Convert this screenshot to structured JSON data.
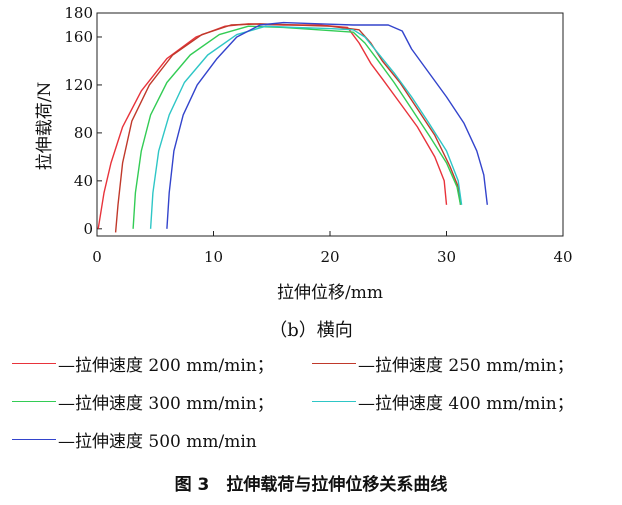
{
  "chart_data": {
    "type": "line",
    "subtitle": "（b）横向",
    "xlabel": "拉伸位移/mm",
    "ylabel": "拉伸载荷/N",
    "xlim": [
      0,
      40
    ],
    "ylim": [
      0,
      180
    ],
    "xticks": [
      0,
      10,
      20,
      30,
      40
    ],
    "yticks": [
      0,
      40,
      80,
      120,
      160,
      180
    ],
    "grid": false,
    "legend_position": "bottom",
    "series": [
      {
        "name": "—拉伸速度 200 mm/min；",
        "color": "#e8333b",
        "x": [
          0.1,
          0.6,
          1.2,
          2.2,
          3.8,
          6.0,
          8.5,
          11.0,
          13.0,
          16.0,
          19.0,
          21.5,
          22.5,
          23.5,
          24.5,
          26.0,
          27.5,
          29.0,
          29.8,
          30.0
        ],
        "y": [
          0,
          30,
          55,
          85,
          115,
          142,
          160,
          169,
          171,
          170,
          170,
          168,
          155,
          138,
          125,
          105,
          85,
          60,
          40,
          20
        ]
      },
      {
        "name": "—拉伸速度 250 mm/min；",
        "color": "#c0392b",
        "x": [
          1.6,
          1.8,
          2.2,
          3.0,
          4.5,
          6.5,
          9.0,
          11.5,
          14.0,
          17.0,
          20.0,
          22.5,
          23.5,
          24.5,
          26.0,
          27.5,
          29.0,
          30.3,
          31.0,
          31.2
        ],
        "y": [
          -3,
          20,
          55,
          90,
          120,
          145,
          162,
          170,
          171,
          170,
          169,
          166,
          155,
          140,
          122,
          100,
          78,
          52,
          35,
          20
        ]
      },
      {
        "name": "—拉伸速度 300 mm/min；",
        "color": "#33cc55",
        "x": [
          3.1,
          3.3,
          3.8,
          4.6,
          6.0,
          8.0,
          10.5,
          13.0,
          16.0,
          19.0,
          22.0,
          23.0,
          24.0,
          25.5,
          27.0,
          28.5,
          30.0,
          30.9,
          31.2
        ],
        "y": [
          0,
          30,
          65,
          95,
          122,
          145,
          162,
          169,
          168,
          166,
          164,
          155,
          142,
          122,
          100,
          78,
          55,
          35,
          20
        ]
      },
      {
        "name": "—拉伸速度 400 mm/min；",
        "color": "#2ec6c6",
        "x": [
          4.6,
          4.8,
          5.3,
          6.2,
          7.5,
          9.5,
          12.0,
          14.5,
          17.0,
          20.0,
          22.0,
          23.0,
          24.0,
          25.5,
          27.0,
          28.5,
          30.0,
          31.0,
          31.3
        ],
        "y": [
          0,
          30,
          65,
          95,
          122,
          145,
          162,
          169,
          168,
          167,
          166,
          160,
          148,
          130,
          110,
          88,
          65,
          40,
          20
        ]
      },
      {
        "name": "—拉伸速度 500 mm/min",
        "color": "#3344cc",
        "x": [
          6.0,
          6.2,
          6.6,
          7.4,
          8.6,
          10.3,
          12.0,
          14.0,
          16.0,
          19.0,
          22.0,
          25.0,
          26.2,
          27.0,
          28.5,
          30.0,
          31.5,
          32.6,
          33.2,
          33.5
        ],
        "y": [
          0,
          30,
          65,
          95,
          120,
          142,
          160,
          170,
          172,
          171,
          170,
          170,
          165,
          150,
          130,
          110,
          88,
          65,
          45,
          20
        ]
      }
    ]
  },
  "caption": "图 3　拉伸载荷与拉伸位移关系曲线"
}
